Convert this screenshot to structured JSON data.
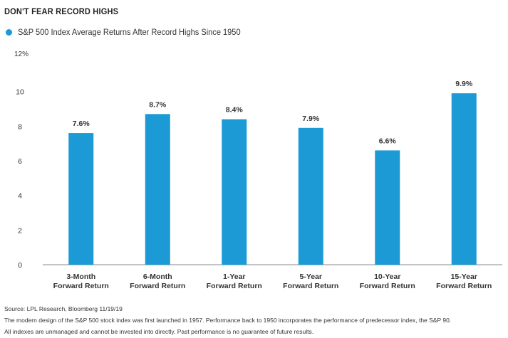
{
  "title": "DON'T FEAR RECORD HIGHS",
  "legend": {
    "label": "S&P 500 Index Average Returns After Record Highs Since 1950",
    "color": "#1b9ad6"
  },
  "chart_data": {
    "type": "bar",
    "categories": [
      [
        "3-Month",
        "Forward Return"
      ],
      [
        "6-Month",
        "Forward Return"
      ],
      [
        "1-Year",
        "Forward Return"
      ],
      [
        "5-Year",
        "Forward Return"
      ],
      [
        "10-Year",
        "Forward Return"
      ],
      [
        "15-Year",
        "Forward Return"
      ]
    ],
    "series": [
      {
        "name": "S&P 500 Index Average Returns After Record Highs Since 1950",
        "values": [
          7.6,
          8.7,
          8.4,
          7.9,
          6.6,
          9.9
        ]
      }
    ],
    "data_labels": [
      "7.6%",
      "8.7%",
      "8.4%",
      "7.9%",
      "6.6%",
      "9.9%"
    ],
    "yticks": [
      "0",
      "2",
      "4",
      "6",
      "8",
      "10"
    ],
    "ytick_values": [
      0,
      2,
      4,
      6,
      8,
      10
    ],
    "ymax_label": "12%",
    "ylim": [
      0,
      12
    ],
    "bar_color": "#1b9ad6",
    "grid": false,
    "legend_position": "top-left"
  },
  "footer": {
    "source": "Source: LPL Research, Bloomberg 11/19/19",
    "note1": "The modern design of the S&P 500 stock index was first launched in 1957. Performance back to 1950 incorporates the performance of predecessor index, the S&P 90.",
    "note2": "All indexes are unmanaged and cannot be invested into directly. Past performance is no guarantee of future results."
  }
}
